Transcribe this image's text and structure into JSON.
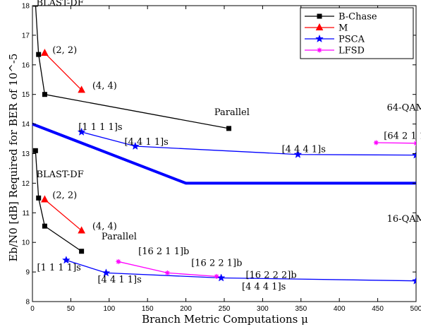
{
  "chart_data": {
    "type": "line",
    "xlabel": "Branch Metric Computations μ",
    "ylabel": "Eb/N0 [dB] Required for BER of 10^-5",
    "xlim": [
      0,
      500
    ],
    "ylim": [
      8,
      18
    ],
    "xticks": [
      "0",
      "50",
      "100",
      "150",
      "200",
      "250",
      "300",
      "350",
      "400",
      "450",
      "500"
    ],
    "yticks": [
      "8",
      "9",
      "10",
      "11",
      "12",
      "13",
      "14",
      "15",
      "16",
      "17",
      "18"
    ],
    "legend_position": "top-right",
    "series": [
      {
        "name": "B-Chase",
        "color": "#000000",
        "marker": "square",
        "x": [
          4,
          8,
          16,
          256
        ],
        "y": [
          18.05,
          16.35,
          15.0,
          13.85
        ],
        "group": "64-QAM"
      },
      {
        "name": "M",
        "color": "#ff0000",
        "marker": "triangle",
        "x": [
          16,
          64
        ],
        "y": [
          16.4,
          15.15
        ],
        "group": "64-QAM"
      },
      {
        "name": "PSCA",
        "color": "#0000ff",
        "marker": "star",
        "x": [
          64,
          134,
          346,
          500
        ],
        "y": [
          13.73,
          13.25,
          12.97,
          12.95
        ],
        "group": "64-QAM"
      },
      {
        "name": "LFSD",
        "color": "#ff00ff",
        "marker": "asterisk",
        "x": [
          448,
          500
        ],
        "y": [
          13.37,
          13.35
        ],
        "group": "64-QAM"
      },
      {
        "name": "B-Chase",
        "color": "#000000",
        "marker": "square",
        "x": [
          4,
          8,
          16,
          64
        ],
        "y": [
          13.1,
          11.5,
          10.55,
          9.7
        ],
        "group": "16-QAM"
      },
      {
        "name": "M",
        "color": "#ff0000",
        "marker": "triangle",
        "x": [
          16,
          64
        ],
        "y": [
          11.45,
          10.4
        ],
        "group": "16-QAM"
      },
      {
        "name": "PSCA",
        "color": "#0000ff",
        "marker": "star",
        "x": [
          44,
          96,
          246,
          500
        ],
        "y": [
          9.4,
          8.97,
          8.8,
          8.7
        ],
        "group": "16-QAM"
      },
      {
        "name": "LFSD",
        "color": "#ff00ff",
        "marker": "asterisk",
        "x": [
          112,
          176,
          240
        ],
        "y": [
          9.35,
          8.97,
          8.85
        ],
        "group": "16-QAM"
      }
    ],
    "bound_line": {
      "x": [
        0,
        200,
        500
      ],
      "y": [
        14.0,
        12.0,
        12.0
      ],
      "color": "#0000ff"
    },
    "annotations": [
      {
        "text": "BLAST-DF",
        "x": 5,
        "y": 18.0
      },
      {
        "text": "(2, 2)",
        "x": 26,
        "y": 16.4
      },
      {
        "text": "(4, 4)",
        "x": 78,
        "y": 15.2
      },
      {
        "text": "Parallel",
        "x": 237,
        "y": 14.3
      },
      {
        "text": "64-QAM",
        "x": 462,
        "y": 14.45
      },
      {
        "text": "[1 1 1 1]s",
        "x": 60,
        "y": 13.8
      },
      {
        "text": "[4 4 1 1]s",
        "x": 120,
        "y": 13.3
      },
      {
        "text": "[4 4 4 1]s",
        "x": 325,
        "y": 13.05
      },
      {
        "text": "[64 2 1 1]b",
        "x": 458,
        "y": 13.5
      },
      {
        "text": "BLAST-DF",
        "x": 5,
        "y": 12.2
      },
      {
        "text": "(2, 2)",
        "x": 26,
        "y": 11.5
      },
      {
        "text": "(4, 4)",
        "x": 78,
        "y": 10.45
      },
      {
        "text": "16-QAM",
        "x": 462,
        "y": 10.7
      },
      {
        "text": "Parallel",
        "x": 90,
        "y": 10.1
      },
      {
        "text": "[1 1 1 1]s",
        "x": 6,
        "y": 9.05
      },
      {
        "text": "[16 2 1 1]b",
        "x": 138,
        "y": 9.6
      },
      {
        "text": "[16 2 2 1]b",
        "x": 207,
        "y": 9.2
      },
      {
        "text": "[16 2 2 2]b",
        "x": 278,
        "y": 8.8
      },
      {
        "text": "[4 4 1 1]s",
        "x": 85,
        "y": 8.65
      },
      {
        "text": "[4 4 4 1]s",
        "x": 273,
        "y": 8.4
      }
    ]
  }
}
